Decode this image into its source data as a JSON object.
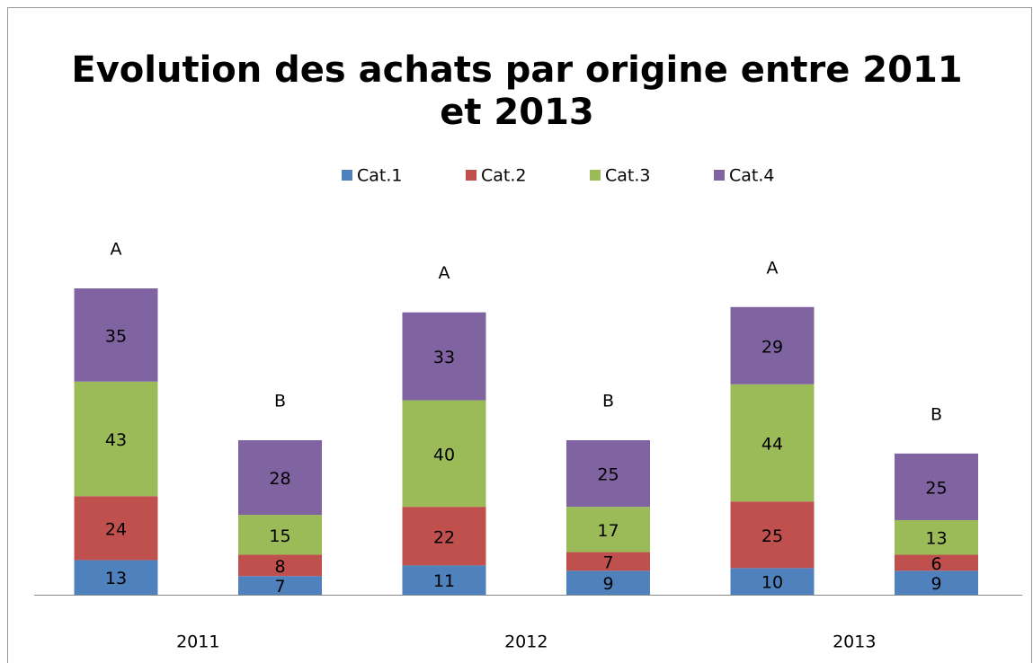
{
  "chart_data": {
    "type": "stacked_bar",
    "title": "Evolution des achats par origine entre 2011 et 2013",
    "groups": [
      "2011",
      "2012",
      "2013"
    ],
    "categories": [
      "A",
      "B",
      "A",
      "B",
      "A",
      "B"
    ],
    "series": [
      {
        "name": "Cat.1",
        "color": "#4f81bd",
        "values": [
          13,
          7,
          11,
          9,
          10,
          9
        ]
      },
      {
        "name": "Cat.2",
        "color": "#c0504d",
        "values": [
          24,
          8,
          22,
          7,
          25,
          6
        ]
      },
      {
        "name": "Cat.3",
        "color": "#9bbb59",
        "values": [
          43,
          15,
          40,
          17,
          44,
          13
        ]
      },
      {
        "name": "Cat.4",
        "color": "#8064a2",
        "values": [
          35,
          28,
          33,
          25,
          29,
          25
        ]
      }
    ],
    "legend": "top"
  }
}
